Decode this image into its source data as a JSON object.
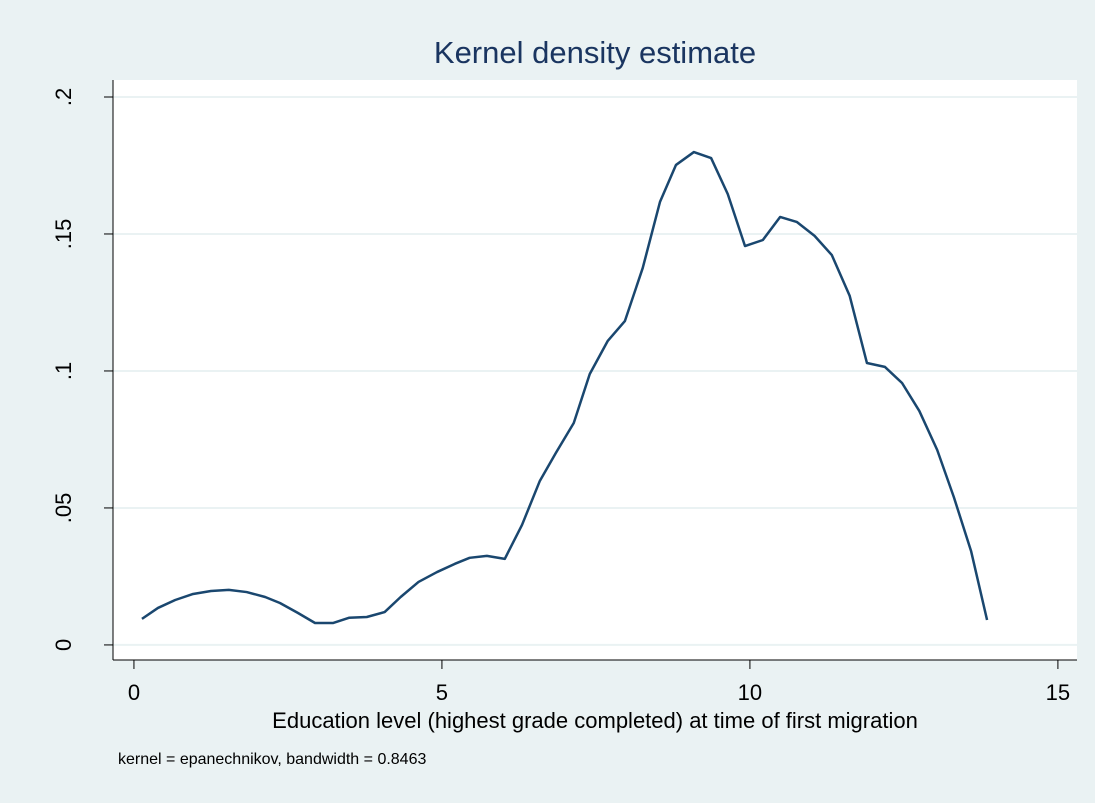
{
  "chart_data": {
    "type": "line",
    "title": "Kernel density estimate",
    "x_label": "Education level (highest grade completed) at time of first migration",
    "note": "kernel = epanechnikov, bandwidth = 0.8463",
    "x": [
      0.13,
      0.39,
      0.67,
      0.96,
      1.25,
      1.54,
      1.83,
      2.13,
      2.37,
      2.66,
      2.94,
      3.23,
      3.49,
      3.78,
      4.07,
      4.33,
      4.62,
      4.92,
      5.21,
      5.45,
      5.73,
      6.02,
      6.3,
      6.59,
      6.85,
      7.14,
      7.4,
      7.69,
      7.97,
      8.26,
      8.54,
      8.8,
      9.09,
      9.37,
      9.64,
      9.92,
      10.21,
      10.49,
      10.76,
      11.05,
      11.33,
      11.62,
      11.9,
      12.19,
      12.47,
      12.75,
      13.04,
      13.31,
      13.59,
      13.85
    ],
    "series": [
      {
        "color": "#1a476f",
        "values": [
          0.0095,
          0.0135,
          0.0164,
          0.0186,
          0.0197,
          0.0201,
          0.0193,
          0.0175,
          0.0153,
          0.0117,
          0.008,
          0.008,
          0.0099,
          0.0102,
          0.012,
          0.0175,
          0.023,
          0.0266,
          0.0296,
          0.0318,
          0.0325,
          0.0314,
          0.0438,
          0.0599,
          0.0701,
          0.081,
          0.0989,
          0.1109,
          0.1182,
          0.1376,
          0.1617,
          0.1752,
          0.1799,
          0.1777,
          0.1646,
          0.1456,
          0.1478,
          0.1562,
          0.1544,
          0.1493,
          0.1423,
          0.1274,
          0.1029,
          0.1015,
          0.0956,
          0.0854,
          0.0712,
          0.054,
          0.0343,
          0.0091
        ]
      }
    ],
    "xlim": [
      -0.34,
      15.31
    ],
    "xticks": [
      0,
      5,
      10,
      15
    ],
    "ylim": [
      -0.0055,
      0.2062
    ],
    "yticks": [
      0,
      {
        "value": 0.05,
        "label": ".05"
      },
      {
        "value": 0.1,
        "label": ".1"
      },
      {
        "value": 0.15,
        "label": ".15"
      },
      {
        "value": 0.2,
        "label": ".2"
      }
    ],
    "grid": true
  }
}
